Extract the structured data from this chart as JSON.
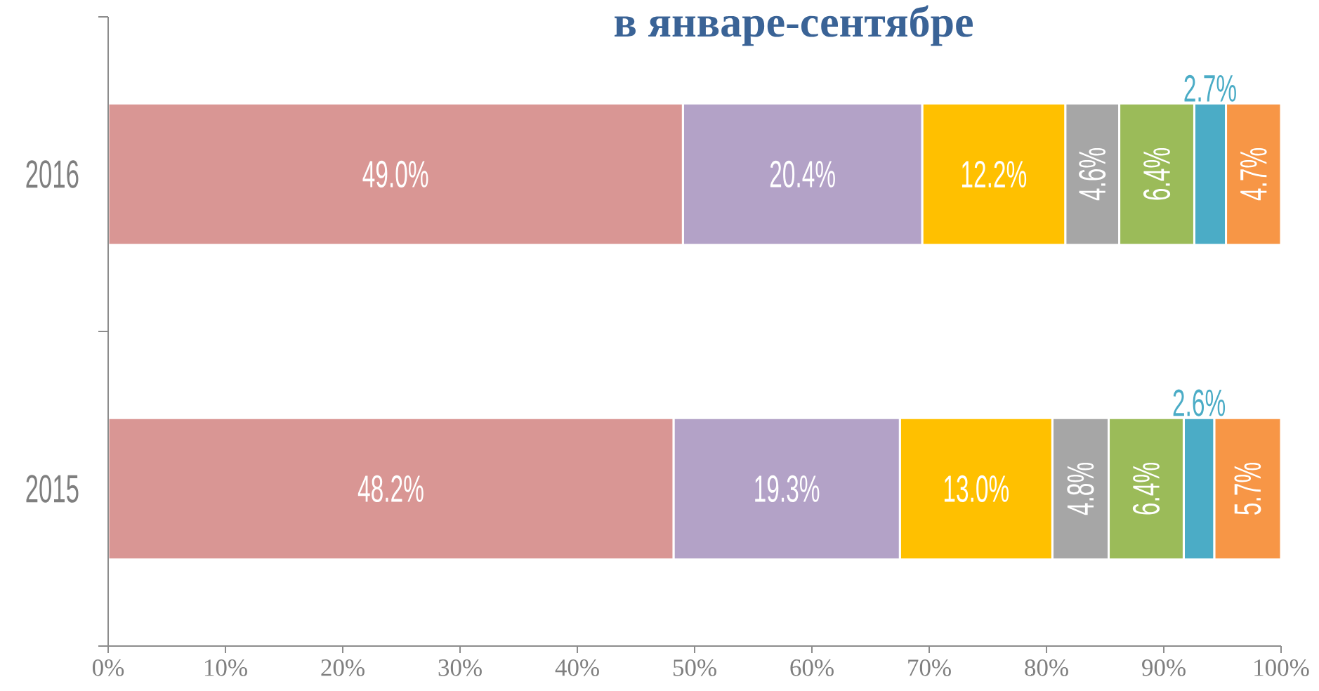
{
  "chart_data": {
    "type": "bar",
    "orientation": "horizontal",
    "stacked": true,
    "title": "в январе-сентябре",
    "categories": [
      "2016",
      "2015"
    ],
    "series": [
      {
        "color": "#d99694",
        "values": [
          49.0,
          48.2
        ],
        "value_labels": [
          "49.0%",
          "48.2%"
        ]
      },
      {
        "color": "#b3a2c7",
        "values": [
          20.4,
          19.3
        ],
        "value_labels": [
          "20.4%",
          "19.3%"
        ]
      },
      {
        "color": "#ffc000",
        "values": [
          12.2,
          13.0
        ],
        "value_labels": [
          "12.2%",
          "13.0%"
        ]
      },
      {
        "color": "#a6a6a6",
        "values": [
          4.6,
          4.8
        ],
        "value_labels": [
          "4.6%",
          "4.8%"
        ]
      },
      {
        "color": "#9bbb59",
        "values": [
          6.4,
          6.4
        ],
        "value_labels": [
          "6.4%",
          "6.4%"
        ]
      },
      {
        "color": "#4bacc6",
        "values": [
          2.7,
          2.6
        ],
        "value_labels": [
          "2.7%",
          "2.6%"
        ]
      },
      {
        "color": "#f79646",
        "values": [
          4.7,
          5.7
        ],
        "value_labels": [
          "4.7%",
          "5.7%"
        ]
      }
    ],
    "xlim": [
      0,
      100
    ],
    "xticks": [
      {
        "value": 0,
        "label": "0%"
      },
      {
        "value": 10,
        "label": "10%"
      },
      {
        "value": 20,
        "label": "20%"
      },
      {
        "value": 30,
        "label": "30%"
      },
      {
        "value": 40,
        "label": "40%"
      },
      {
        "value": 50,
        "label": "50%"
      },
      {
        "value": 60,
        "label": "60%"
      },
      {
        "value": 70,
        "label": "70%"
      },
      {
        "value": 80,
        "label": "80%"
      },
      {
        "value": 90,
        "label": "90%"
      },
      {
        "value": 100,
        "label": "100%"
      }
    ]
  }
}
